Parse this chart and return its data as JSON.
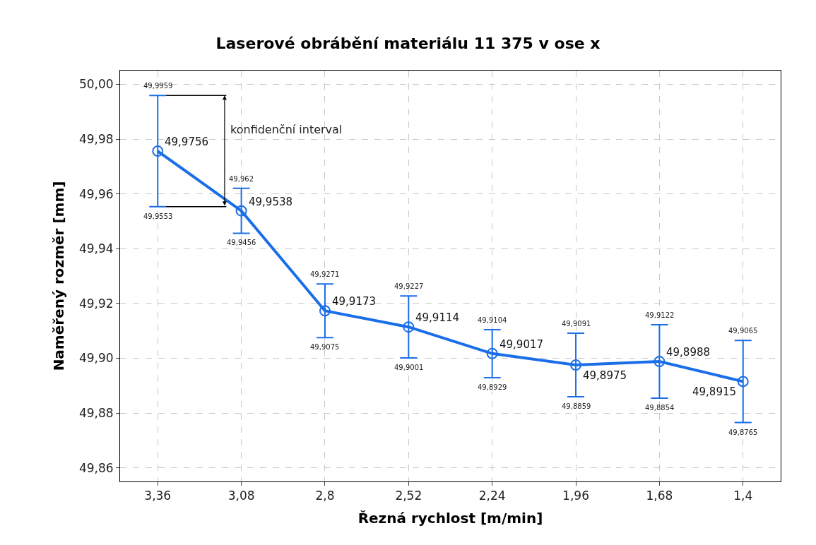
{
  "chart_data": {
    "type": "line",
    "title": "Laserové obrábění materiálu 11 375 v ose x",
    "xlabel": "Řezná rychlost [m/min]",
    "ylabel": "Naměřený rozměr [mm]",
    "categories": [
      "3,36",
      "3,08",
      "2,8",
      "2,52",
      "2,24",
      "1,96",
      "1,68",
      "1,4"
    ],
    "values": [
      49.9756,
      49.9538,
      49.9173,
      49.9114,
      49.9017,
      49.8975,
      49.8988,
      49.8915
    ],
    "value_labels": [
      "49,9756",
      "49,9538",
      "49,9173",
      "49,9114",
      "49,9017",
      "49,8975",
      "49,8988",
      "49,8915"
    ],
    "errors": [
      [
        49.9553,
        49.9959
      ],
      [
        49.9456,
        49.962
      ],
      [
        49.9075,
        49.9271
      ],
      [
        49.9001,
        49.9227
      ],
      [
        49.8929,
        49.9104
      ],
      [
        49.8859,
        49.9091
      ],
      [
        49.8854,
        49.9122
      ],
      [
        49.8765,
        49.9065
      ]
    ],
    "color": "#1a6ee8",
    "marker": "circle",
    "line_style": "solid",
    "grid": true,
    "legend": false,
    "annotations": [
      "konfidenční interval",
      {
        "text": "49,9959",
        "x": "3,36",
        "y": 49.9959
      },
      {
        "text": "49,9553",
        "x": "3,36",
        "y": 49.9553
      },
      {
        "text": "49,962",
        "x": "3,08",
        "y": 49.962
      },
      {
        "text": "49,9456",
        "x": "3,08",
        "y": 49.9456
      },
      {
        "text": "49,9271",
        "x": "2,8",
        "y": 49.9271
      },
      {
        "text": "49,9075",
        "x": "2,8",
        "y": 49.9075
      },
      {
        "text": "49,9227",
        "x": "2,52",
        "y": 49.9227
      },
      {
        "text": "49,9001",
        "x": "2,52",
        "y": 49.9001
      },
      {
        "text": "49,9104",
        "x": "2,24",
        "y": 49.9104
      },
      {
        "text": "49,8929",
        "x": "2,24",
        "y": 49.8929
      },
      {
        "text": "49,9091",
        "x": "1,96",
        "y": 49.9091
      },
      {
        "text": "49,8859",
        "x": "1,96",
        "y": 49.8859
      },
      {
        "text": "49,9122",
        "x": "1,68",
        "y": 49.9122
      },
      {
        "text": "49,8854",
        "x": "1,68",
        "y": 49.8854
      },
      {
        "text": "49,9065",
        "x": "1,4",
        "y": 49.9065
      },
      {
        "text": "49,8765",
        "x": "1,4",
        "y": 49.8765
      }
    ],
    "ylim": [
      49.855,
      50.005
    ],
    "yticks": [
      {
        "value": 49.86,
        "label": "49,86"
      },
      {
        "value": 49.88,
        "label": "49,88"
      },
      {
        "value": 49.9,
        "label": "49,90"
      },
      {
        "value": 49.92,
        "label": "49,92"
      },
      {
        "value": 49.94,
        "label": "49,94"
      },
      {
        "value": 49.96,
        "label": "49,96"
      },
      {
        "value": 49.98,
        "label": "49,98"
      },
      {
        "value": 50.0,
        "label": "50,00"
      }
    ]
  }
}
